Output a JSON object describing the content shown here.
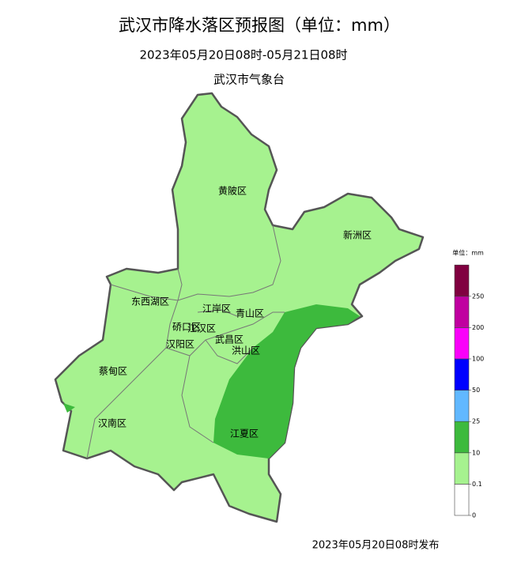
{
  "title": "武汉市降水落区预报图（单位：mm）",
  "subtitle": "2023年05月20日08时-05月21日08时",
  "issuer": "武汉市气象台",
  "districts": [
    "黄陂区",
    "新洲区",
    "东西湖区",
    "江岸区",
    "青山区",
    "硚口区",
    "江汉区",
    "汉阳区",
    "武昌区",
    "洪山区",
    "蔡甸区",
    "汉南区",
    "江夏区"
  ],
  "legend": {
    "title": "单位：mm",
    "ticks": [
      0,
      0.1,
      10,
      25,
      50,
      100,
      200,
      250
    ],
    "colors": [
      "#ffffff",
      "#a6f28f",
      "#3dba3d",
      "#61b8ff",
      "#0000ff",
      "#fa00fa",
      "#c000a0",
      "#800040"
    ]
  },
  "footer": "2023年05月20日08时发布"
}
